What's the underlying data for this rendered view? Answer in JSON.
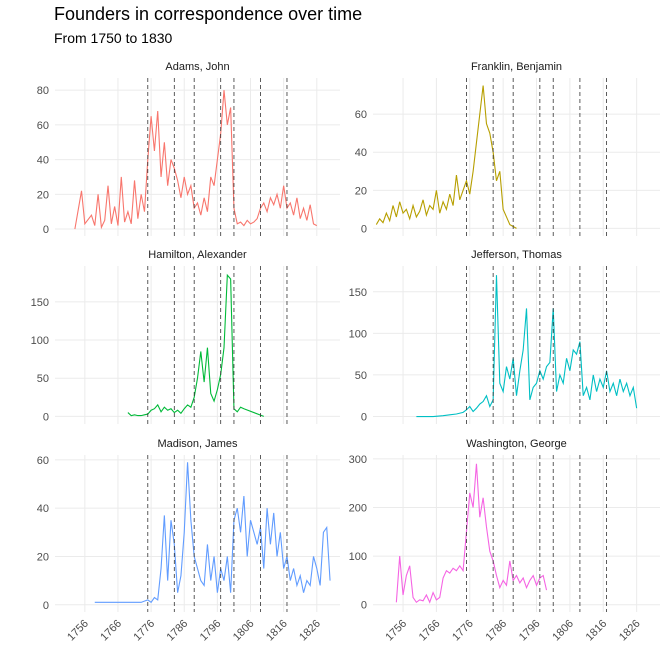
{
  "chart_data": {
    "type": "line",
    "title": "Founders in correspondence over time",
    "subtitle": "From 1750 to 1830",
    "xlim": [
      1747,
      1833
    ],
    "xticks": [
      1756,
      1766,
      1776,
      1786,
      1796,
      1806,
      1816,
      1826
    ],
    "vlines": [
      1775,
      1783,
      1789,
      1797,
      1801,
      1809,
      1817
    ],
    "panels": [
      {
        "title": "Adams, John",
        "color": "#F8766D",
        "ylim": [
          -4,
          87
        ],
        "yticks": [
          0,
          20,
          40,
          60,
          80
        ],
        "x": [
          1753,
          1755,
          1756,
          1758,
          1759,
          1760,
          1761,
          1762,
          1763,
          1764,
          1765,
          1766,
          1767,
          1768,
          1769,
          1770,
          1771,
          1772,
          1773,
          1774,
          1775,
          1776,
          1777,
          1778,
          1779,
          1780,
          1781,
          1782,
          1783,
          1784,
          1785,
          1786,
          1787,
          1788,
          1789,
          1790,
          1791,
          1792,
          1793,
          1794,
          1795,
          1796,
          1797,
          1798,
          1799,
          1800,
          1801,
          1802,
          1803,
          1804,
          1805,
          1806,
          1807,
          1808,
          1809,
          1810,
          1811,
          1812,
          1813,
          1814,
          1815,
          1816,
          1817,
          1818,
          1819,
          1820,
          1821,
          1822,
          1823,
          1824,
          1825,
          1826
        ],
        "values": [
          0,
          22,
          3,
          8,
          2,
          20,
          1,
          5,
          25,
          3,
          13,
          2,
          30,
          4,
          10,
          3,
          28,
          6,
          20,
          10,
          40,
          65,
          45,
          68,
          30,
          50,
          25,
          40,
          35,
          28,
          18,
          30,
          20,
          25,
          12,
          15,
          8,
          18,
          10,
          30,
          25,
          40,
          55,
          80,
          60,
          70,
          12,
          3,
          4,
          2,
          5,
          3,
          4,
          6,
          12,
          15,
          10,
          18,
          14,
          20,
          12,
          25,
          12,
          15,
          8,
          18,
          6,
          12,
          5,
          14,
          3,
          2
        ]
      },
      {
        "title": "Franklin, Benjamin",
        "color": "#B79F00",
        "ylim": [
          -4,
          79
        ],
        "yticks": [
          0,
          20,
          40,
          60
        ],
        "x": [
          1748,
          1749,
          1750,
          1751,
          1752,
          1753,
          1754,
          1755,
          1756,
          1757,
          1758,
          1759,
          1760,
          1761,
          1762,
          1763,
          1764,
          1765,
          1766,
          1767,
          1768,
          1769,
          1770,
          1771,
          1772,
          1773,
          1774,
          1775,
          1776,
          1777,
          1778,
          1779,
          1780,
          1781,
          1782,
          1783,
          1784,
          1785,
          1786,
          1787,
          1788,
          1789,
          1790
        ],
        "values": [
          2,
          5,
          3,
          8,
          4,
          12,
          6,
          14,
          8,
          10,
          5,
          12,
          6,
          9,
          15,
          7,
          12,
          10,
          20,
          8,
          14,
          10,
          18,
          12,
          28,
          15,
          20,
          25,
          18,
          30,
          45,
          60,
          75,
          55,
          50,
          40,
          25,
          30,
          10,
          6,
          2,
          1,
          0
        ]
      },
      {
        "title": "Hamilton, Alexander",
        "color": "#00BA38",
        "ylim": [
          -10,
          197
        ],
        "yticks": [
          0,
          50,
          100,
          150
        ],
        "x": [
          1769,
          1770,
          1771,
          1772,
          1773,
          1774,
          1775,
          1776,
          1777,
          1778,
          1779,
          1780,
          1781,
          1782,
          1783,
          1784,
          1785,
          1786,
          1787,
          1788,
          1789,
          1790,
          1791,
          1792,
          1793,
          1794,
          1795,
          1796,
          1797,
          1798,
          1799,
          1800,
          1801,
          1802,
          1803,
          1804,
          1810
        ],
        "values": [
          5,
          1,
          2,
          1,
          1,
          2,
          3,
          8,
          10,
          15,
          6,
          12,
          8,
          10,
          5,
          8,
          4,
          10,
          15,
          12,
          25,
          50,
          85,
          45,
          90,
          30,
          20,
          35,
          55,
          90,
          185,
          180,
          10,
          6,
          12,
          10,
          0
        ]
      },
      {
        "title": "Jefferson, Thomas",
        "color": "#00BFC4",
        "ylim": [
          -9,
          181
        ],
        "yticks": [
          0,
          50,
          100,
          150
        ],
        "x": [
          1760,
          1765,
          1768,
          1770,
          1772,
          1774,
          1775,
          1776,
          1777,
          1778,
          1779,
          1780,
          1781,
          1782,
          1783,
          1784,
          1785,
          1786,
          1787,
          1788,
          1789,
          1790,
          1791,
          1792,
          1793,
          1794,
          1795,
          1796,
          1797,
          1798,
          1799,
          1800,
          1801,
          1802,
          1803,
          1804,
          1805,
          1806,
          1807,
          1808,
          1809,
          1810,
          1811,
          1812,
          1813,
          1814,
          1815,
          1816,
          1817,
          1818,
          1819,
          1820,
          1821,
          1822,
          1823,
          1824,
          1825,
          1826
        ],
        "values": [
          0,
          0,
          1,
          2,
          3,
          5,
          8,
          12,
          6,
          10,
          15,
          18,
          25,
          12,
          20,
          170,
          40,
          30,
          60,
          45,
          70,
          25,
          55,
          80,
          130,
          20,
          35,
          40,
          55,
          45,
          60,
          65,
          130,
          30,
          50,
          40,
          70,
          55,
          80,
          75,
          90,
          25,
          35,
          20,
          50,
          30,
          45,
          35,
          55,
          30,
          40,
          25,
          45,
          30,
          40,
          25,
          35,
          10
        ]
      },
      {
        "title": "Madison, James",
        "color": "#619CFF",
        "ylim": [
          -3,
          62
        ],
        "yticks": [
          0,
          20,
          40,
          60
        ],
        "x": [
          1759,
          1770,
          1773,
          1775,
          1776,
          1777,
          1778,
          1779,
          1780,
          1781,
          1782,
          1783,
          1784,
          1785,
          1786,
          1787,
          1788,
          1789,
          1790,
          1791,
          1792,
          1793,
          1794,
          1795,
          1796,
          1797,
          1798,
          1799,
          1800,
          1801,
          1802,
          1803,
          1804,
          1805,
          1806,
          1807,
          1808,
          1809,
          1810,
          1811,
          1812,
          1813,
          1814,
          1815,
          1816,
          1817,
          1818,
          1819,
          1820,
          1821,
          1822,
          1823,
          1824,
          1825,
          1826,
          1827,
          1828,
          1829,
          1830
        ],
        "values": [
          1,
          1,
          1,
          2,
          1,
          3,
          2,
          15,
          37,
          10,
          35,
          25,
          5,
          12,
          30,
          59,
          35,
          20,
          15,
          10,
          8,
          25,
          10,
          20,
          5,
          15,
          10,
          20,
          5,
          35,
          40,
          30,
          45,
          20,
          35,
          30,
          25,
          32,
          15,
          40,
          25,
          38,
          20,
          30,
          15,
          20,
          10,
          15,
          8,
          12,
          5,
          10,
          8,
          20,
          15,
          8,
          30,
          32,
          10
        ]
      },
      {
        "title": "Washington, George",
        "color": "#F564E3",
        "ylim": [
          -15,
          308
        ],
        "yticks": [
          0,
          100,
          200,
          300
        ],
        "x": [
          1754,
          1755,
          1756,
          1757,
          1758,
          1759,
          1760,
          1761,
          1762,
          1763,
          1764,
          1765,
          1766,
          1767,
          1768,
          1769,
          1770,
          1771,
          1772,
          1773,
          1774,
          1775,
          1776,
          1777,
          1778,
          1779,
          1780,
          1781,
          1782,
          1783,
          1784,
          1785,
          1786,
          1787,
          1788,
          1789,
          1790,
          1791,
          1792,
          1793,
          1794,
          1795,
          1796,
          1797,
          1798,
          1799
        ],
        "values": [
          5,
          100,
          20,
          60,
          80,
          15,
          5,
          10,
          8,
          20,
          5,
          25,
          10,
          15,
          55,
          70,
          65,
          75,
          70,
          80,
          70,
          150,
          230,
          200,
          290,
          180,
          220,
          160,
          110,
          90,
          60,
          35,
          50,
          40,
          90,
          50,
          60,
          45,
          55,
          35,
          50,
          60,
          40,
          55,
          60,
          30
        ]
      }
    ]
  }
}
